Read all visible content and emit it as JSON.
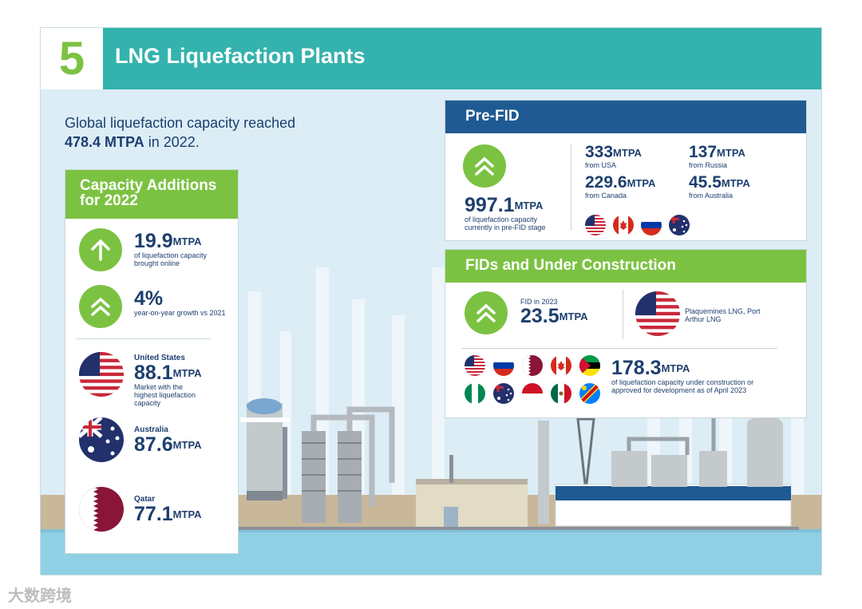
{
  "header": {
    "number": "5",
    "title": "LNG Liquefaction Plants"
  },
  "intro": {
    "line1": "Global liquefaction capacity reached",
    "value": "478.4 MTPA",
    "suffix": " in 2022."
  },
  "additions": {
    "title": "Capacity Additions for 2022",
    "unit": "MTPA",
    "online": {
      "value": "19.9",
      "desc": "of liquefaction capacity brought online"
    },
    "growth": {
      "value": "4%",
      "desc": "year-on-year growth vs 2021"
    },
    "markets": [
      {
        "country": "United States",
        "value": "88.1",
        "desc": "Market with the highest liquefaction capacity"
      },
      {
        "country": "Australia",
        "value": "87.6",
        "desc": ""
      },
      {
        "country": "Qatar",
        "value": "77.1",
        "desc": ""
      }
    ]
  },
  "prefid": {
    "title": "Pre-FID",
    "unit": "MTPA",
    "total": {
      "value": "997.1",
      "desc": "of liquefaction capacity currently in pre-FID stage"
    },
    "sources": [
      {
        "value": "333",
        "from": "from USA"
      },
      {
        "value": "137",
        "from": "from Russia"
      },
      {
        "value": "229.6",
        "from": "from Canada"
      },
      {
        "value": "45.5",
        "from": "from Australia"
      }
    ]
  },
  "fids": {
    "title": "FIDs and  Under Construction",
    "unit": "MTPA",
    "fid2023": {
      "label": "FID in 2023",
      "value": "23.5"
    },
    "projects": "Plaquemines LNG, Port Arthur LNG",
    "construction": {
      "value": "178.3",
      "desc": "of liquefaction capacity under construction or approved for development as of April 2023"
    }
  },
  "colors": {
    "teal": "#34b2ad",
    "green": "#7cc242",
    "navy": "#1d3f6e",
    "blue": "#1f5a92"
  },
  "watermark": "大数跨境"
}
